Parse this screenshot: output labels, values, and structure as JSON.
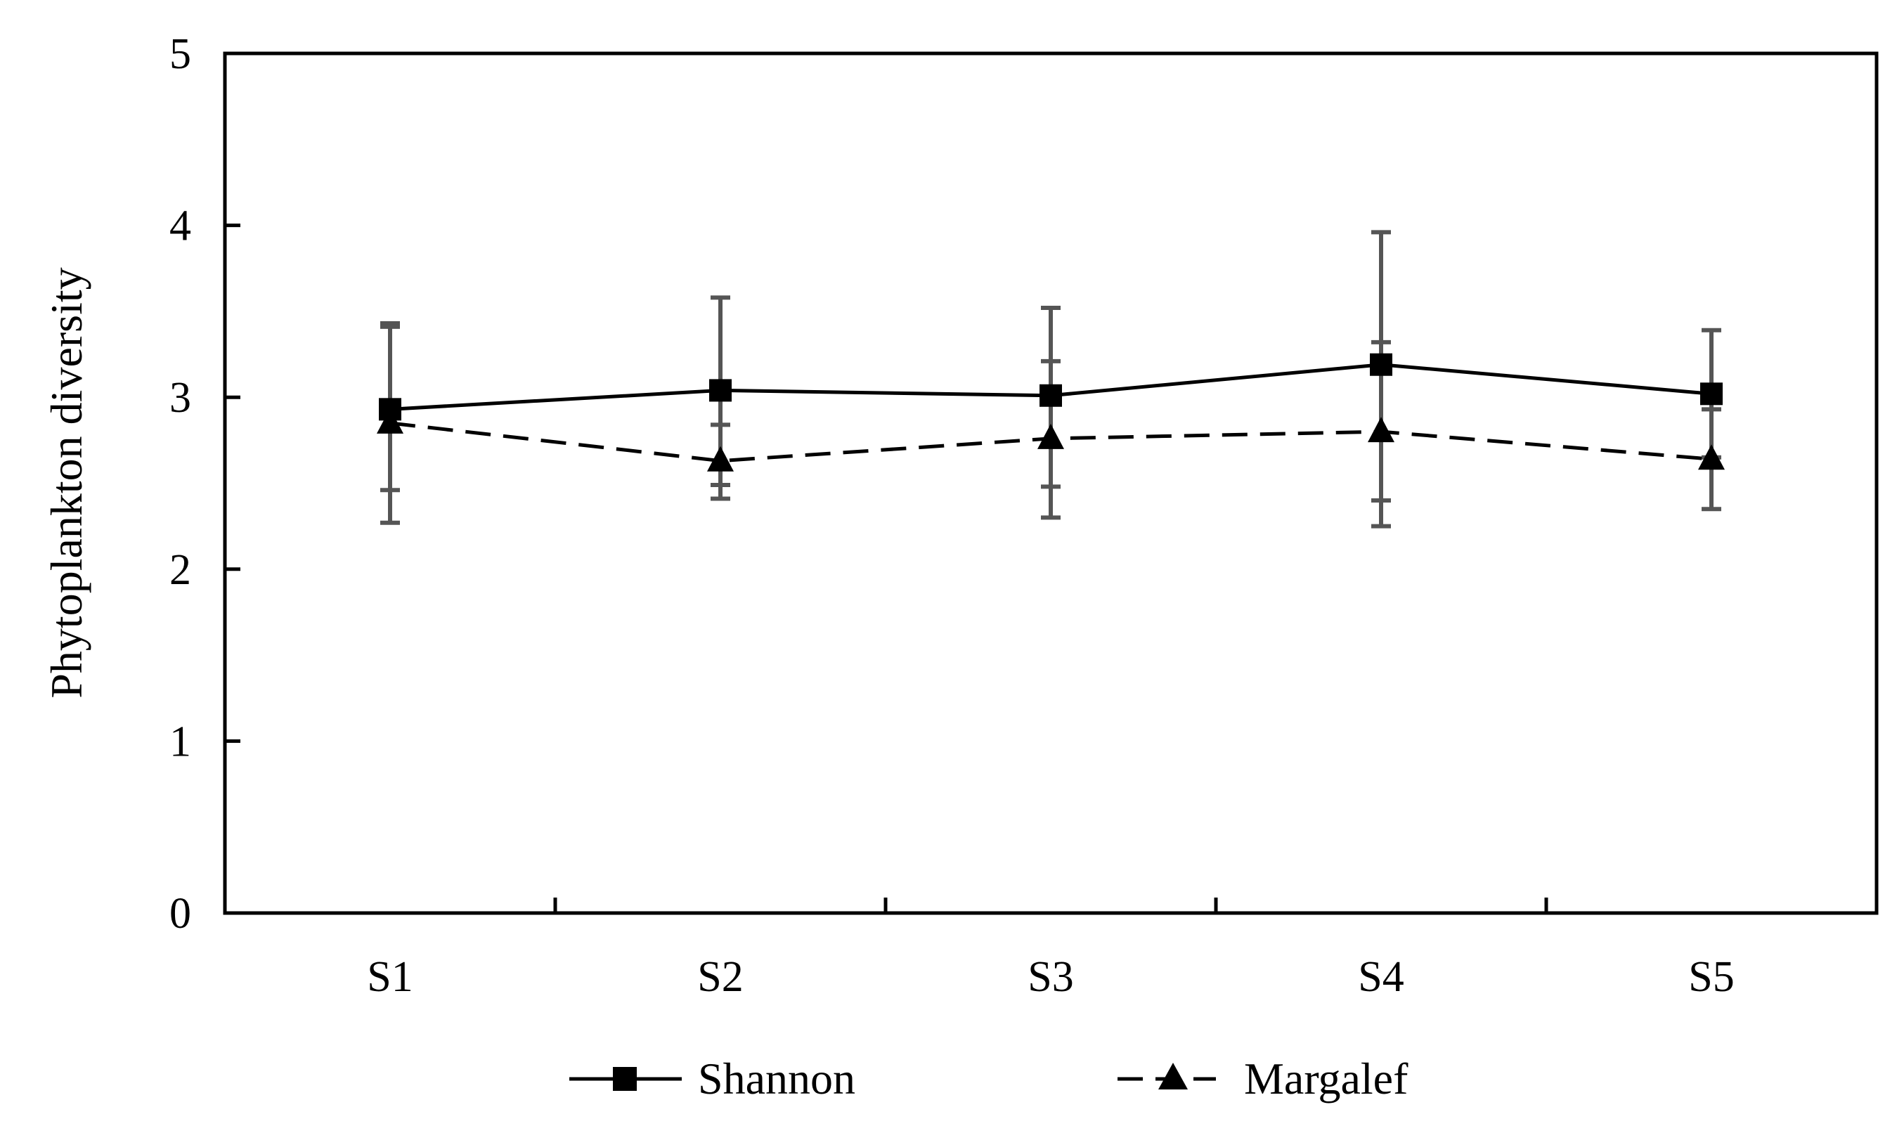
{
  "chart_data": {
    "type": "line",
    "title": "",
    "xlabel": "",
    "ylabel": "Phytoplankton diversity",
    "categories": [
      "S1",
      "S2",
      "S3",
      "S4",
      "S5"
    ],
    "ylim": [
      0,
      5
    ],
    "yticks": [
      "0",
      "1",
      "2",
      "3",
      "4",
      "5"
    ],
    "grid": false,
    "legend_position": "bottom",
    "series": [
      {
        "name": "Shannon",
        "marker": "square",
        "line_style": "solid",
        "values": [
          2.93,
          3.04,
          3.01,
          3.19,
          3.02
        ],
        "error_upper": [
          3.43,
          3.58,
          3.52,
          3.96,
          3.39
        ],
        "error_lower": [
          2.46,
          2.49,
          2.48,
          2.4,
          2.65
        ]
      },
      {
        "name": "Margalef",
        "marker": "triangle",
        "line_style": "dashed",
        "values": [
          2.85,
          2.63,
          2.76,
          2.8,
          2.64
        ],
        "error_upper": [
          3.41,
          2.84,
          3.21,
          3.32,
          2.93
        ],
        "error_lower": [
          2.27,
          2.41,
          2.3,
          2.25,
          2.35
        ]
      }
    ],
    "colors": {
      "line": "#000000",
      "error_bar": "#555555",
      "axis": "#000000"
    }
  }
}
